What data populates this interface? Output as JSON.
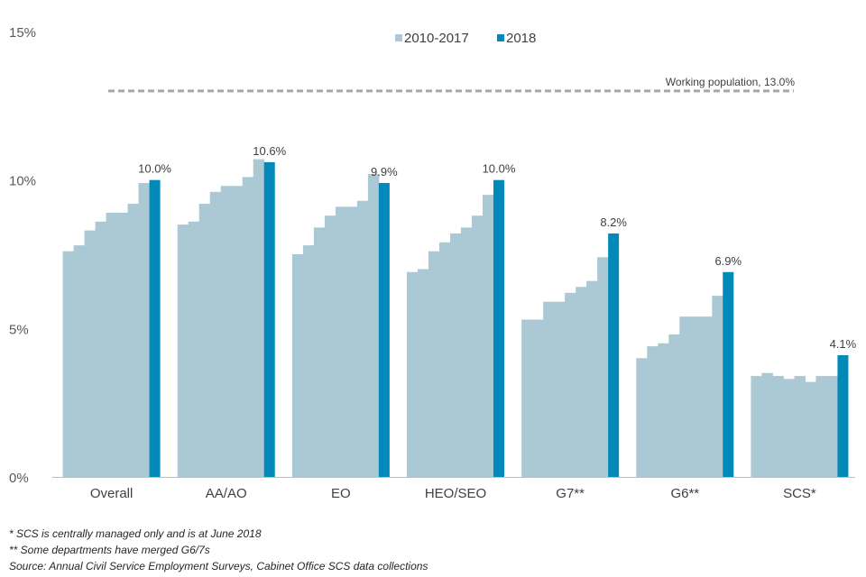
{
  "chart_data": {
    "type": "bar",
    "title": "",
    "xlabel": "",
    "ylabel": "",
    "ylim": [
      0,
      15
    ],
    "y_ticks": [
      "0%",
      "5%",
      "10%",
      "15%"
    ],
    "legend": [
      {
        "name": "2010-2017",
        "color": "#abc9d4"
      },
      {
        "name": "2018",
        "color": "#0089b9"
      }
    ],
    "legend_position": "top-center",
    "reference_line": {
      "label": "Working population, 13.0%",
      "value": 13.0,
      "color": "#a6a6a6"
    },
    "categories": [
      "Overall",
      "AA/AO",
      "EO",
      "HEO/SEO",
      "G7**",
      "G6**",
      "SCS*"
    ],
    "series": [
      {
        "name": "2010-2017",
        "color": "#abc9d4",
        "values_by_category": [
          [
            7.6,
            7.8,
            8.3,
            8.6,
            8.9,
            8.9,
            9.2,
            9.9
          ],
          [
            8.5,
            8.6,
            9.2,
            9.6,
            9.8,
            9.8,
            10.1,
            10.7
          ],
          [
            7.5,
            7.8,
            8.4,
            8.8,
            9.1,
            9.1,
            9.3,
            10.2
          ],
          [
            6.9,
            7.0,
            7.6,
            7.9,
            8.2,
            8.4,
            8.8,
            9.5
          ],
          [
            5.3,
            5.3,
            5.9,
            5.9,
            6.2,
            6.4,
            6.6,
            7.4
          ],
          [
            4.0,
            4.4,
            4.5,
            4.8,
            5.4,
            5.4,
            5.4,
            6.1
          ],
          [
            3.4,
            3.5,
            3.4,
            3.3,
            3.4,
            3.2,
            3.4,
            3.4
          ]
        ]
      },
      {
        "name": "2018",
        "color": "#0089b9",
        "values": [
          10.0,
          10.6,
          9.9,
          10.0,
          8.2,
          6.9,
          4.1
        ],
        "data_labels": [
          "10.0%",
          "10.6%",
          "9.9%",
          "10.0%",
          "8.2%",
          "6.9%",
          "4.1%"
        ]
      }
    ]
  },
  "footnotes": [
    "* SCS is centrally managed only and is at June 2018",
    "** Some departments have merged G6/7s",
    "Source: Annual Civil Service Employment Surveys, Cabinet Office SCS data collections"
  ]
}
